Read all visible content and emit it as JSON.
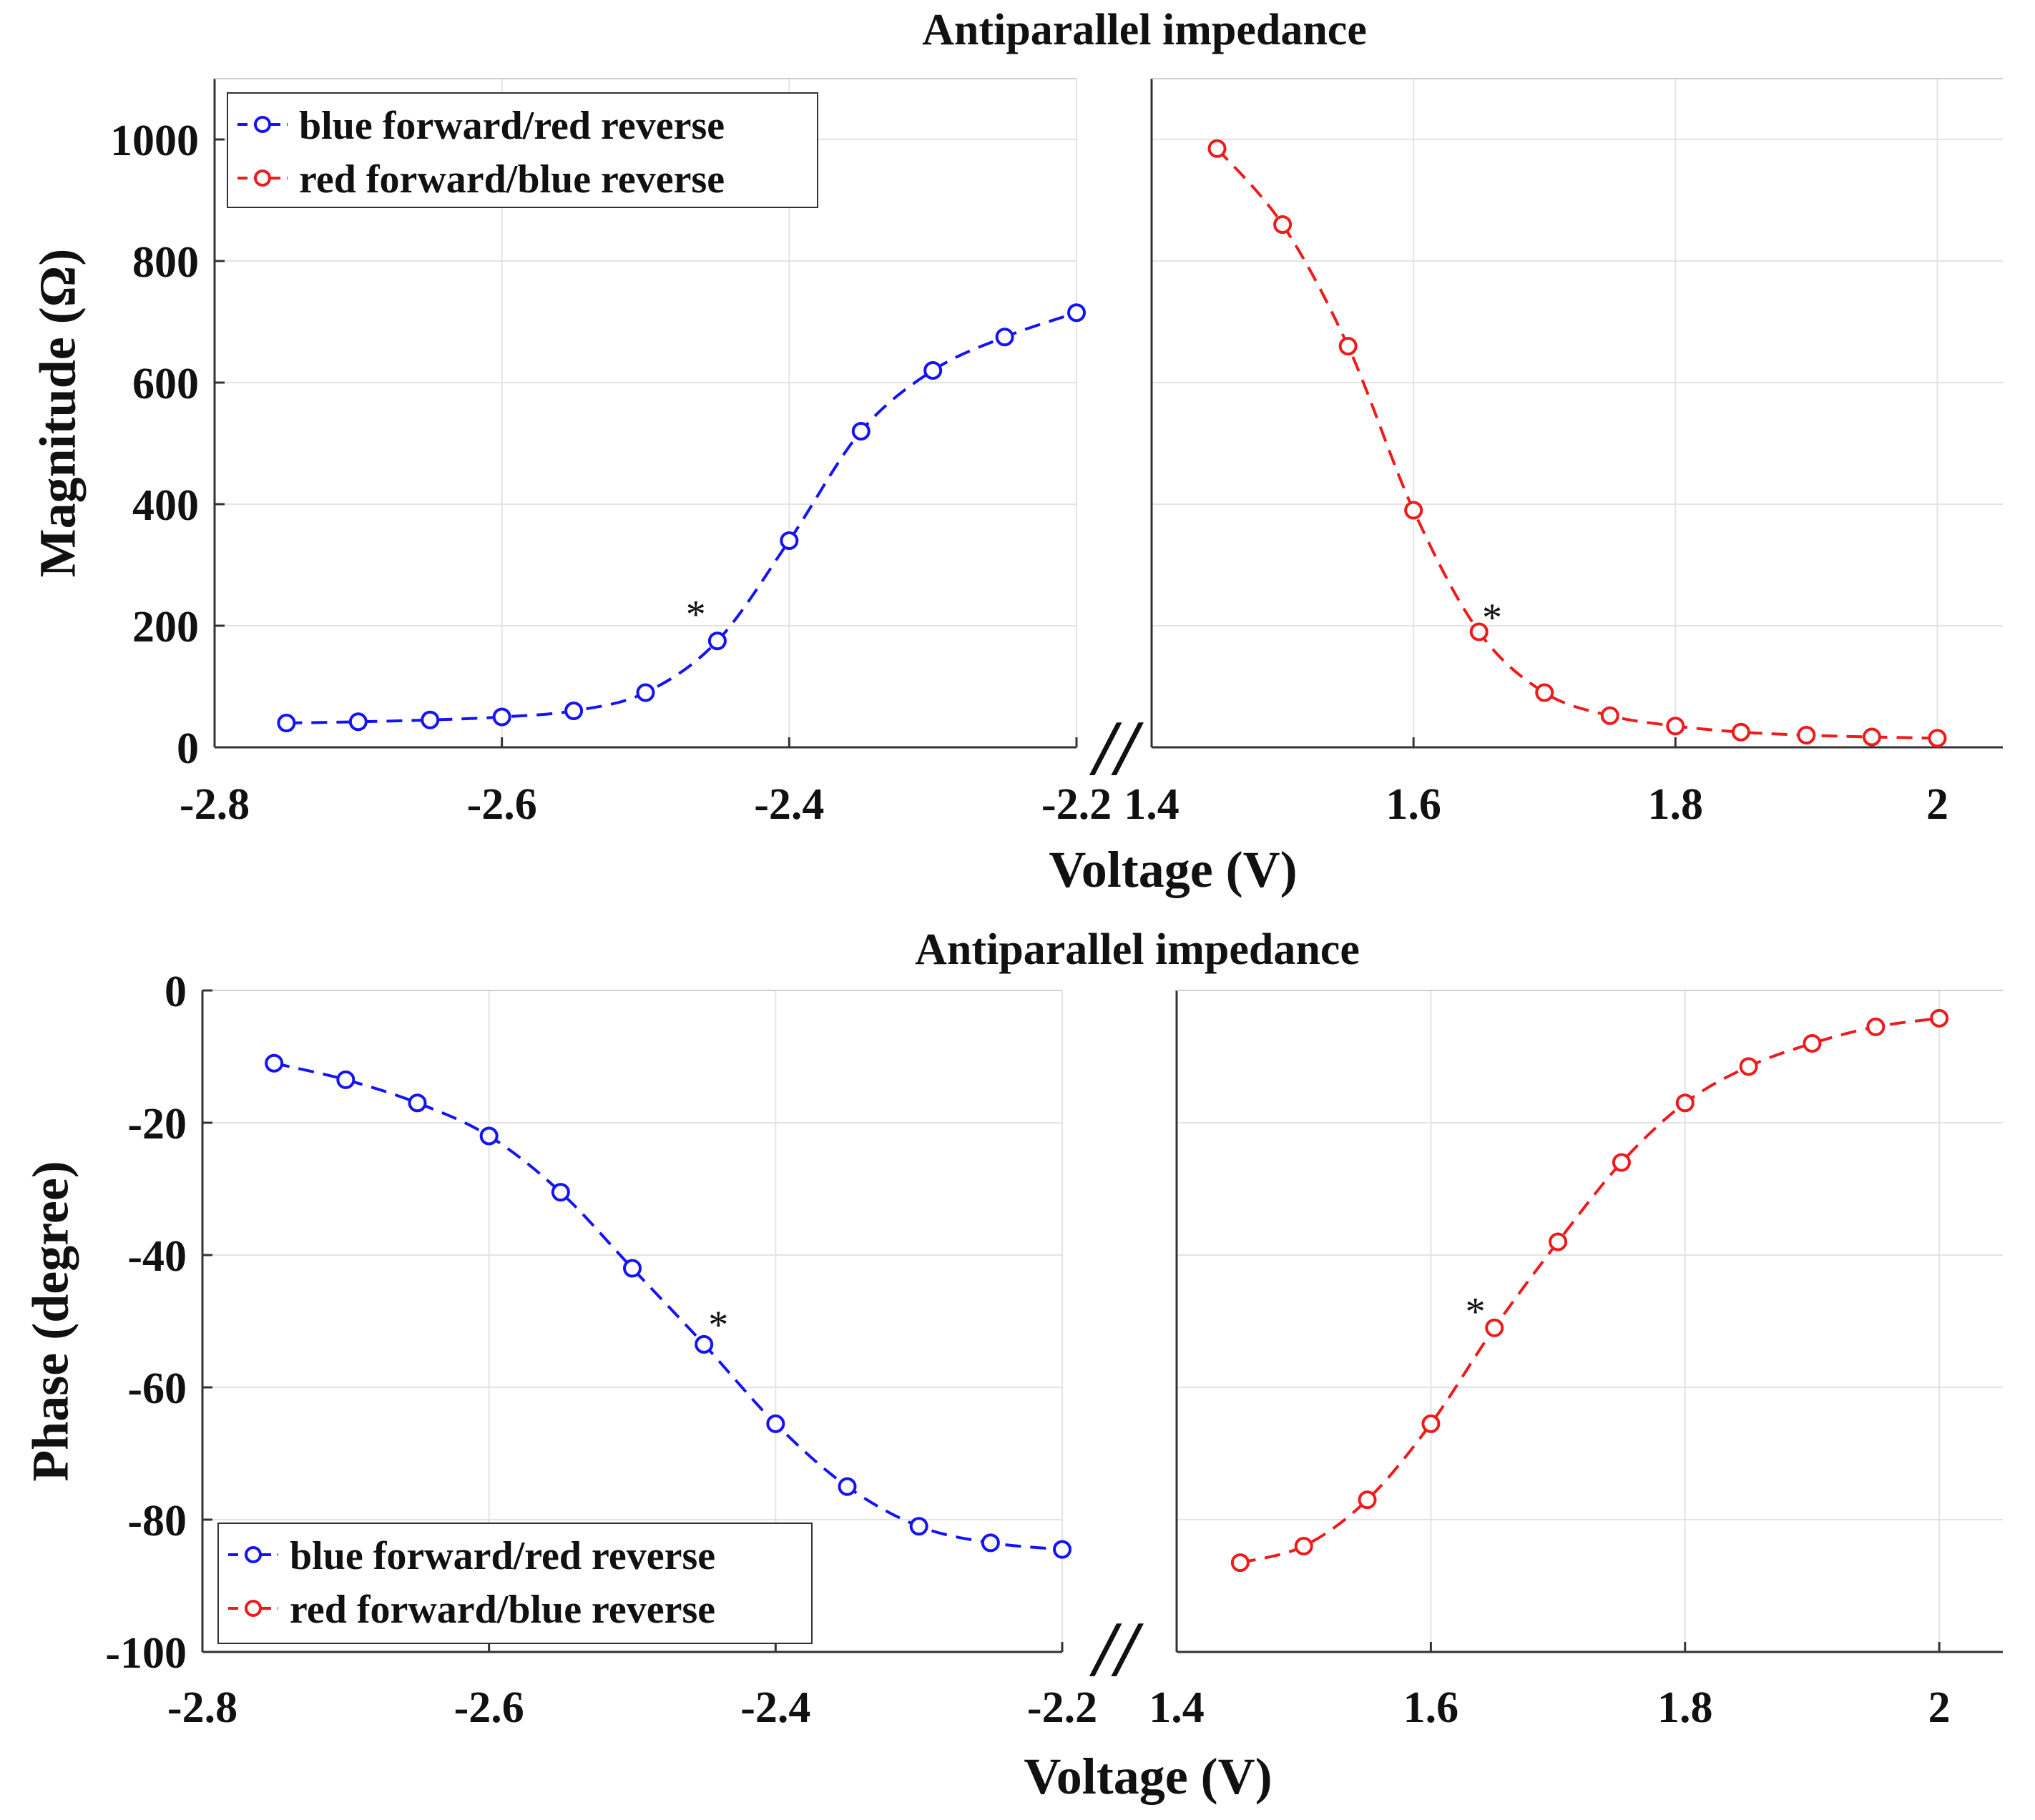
{
  "figure": {
    "colors": {
      "blue": "#1414f5",
      "red": "#ee1b1b",
      "grid": "#e3e3e3",
      "axis": "#333333"
    },
    "break_symbol": "//",
    "panels": [
      {
        "id": "magnitude",
        "title": "Antiparallel impedance",
        "xlabel": "Voltage (V)",
        "ylabel": "Magnitude (Ω)"
      },
      {
        "id": "phase",
        "title": "Antiparallel impedance",
        "xlabel": "Voltage (V)",
        "ylabel": "Phase (degree)"
      }
    ]
  },
  "chart_data": [
    {
      "type": "line",
      "title": "Antiparallel impedance",
      "xlabel": "Voltage (V)",
      "ylabel": "Magnitude (Ω)",
      "ylim": [
        0,
        1100
      ],
      "yticks": [
        0,
        200,
        400,
        600,
        800,
        1000
      ],
      "grid": true,
      "legend": {
        "placement": "top-left",
        "entries": [
          "blue forward/red reverse",
          "red forward/blue reverse"
        ]
      },
      "broken_x_axis": [
        {
          "xlim": [
            -2.8,
            -2.2
          ],
          "xticks": [
            -2.8,
            -2.6,
            -2.4,
            -2.2
          ],
          "tick_labels": [
            "-2.8",
            "-2.6",
            "-2.4",
            "-2.2"
          ]
        },
        {
          "xlim": [
            1.4,
            2.05
          ],
          "xticks": [
            1.4,
            1.6,
            1.8,
            2.0
          ],
          "tick_labels": [
            "1.4",
            "1.6",
            "1.8",
            "2"
          ]
        }
      ],
      "series": [
        {
          "name": "blue forward/red reverse",
          "color": "#1414f5",
          "segment": 0,
          "x": [
            -2.75,
            -2.7,
            -2.65,
            -2.6,
            -2.55,
            -2.5,
            -2.45,
            -2.4,
            -2.35,
            -2.3,
            -2.25,
            -2.2
          ],
          "y": [
            40,
            42,
            45,
            50,
            60,
            90,
            175,
            340,
            520,
            620,
            675,
            715
          ]
        },
        {
          "name": "red forward/blue reverse",
          "color": "#ee1b1b",
          "segment": 1,
          "x": [
            1.45,
            1.5,
            1.55,
            1.6,
            1.65,
            1.7,
            1.75,
            1.8,
            1.85,
            1.9,
            1.95,
            2.0
          ],
          "y": [
            985,
            860,
            660,
            390,
            190,
            90,
            52,
            35,
            25,
            20,
            17,
            15
          ]
        }
      ],
      "annotations": [
        {
          "text": "*",
          "x": -2.465,
          "y": 230,
          "segment": 0
        },
        {
          "text": "*",
          "x": 1.66,
          "y": 225,
          "segment": 1
        }
      ]
    },
    {
      "type": "line",
      "title": "Antiparallel impedance",
      "xlabel": "Voltage (V)",
      "ylabel": "Phase (degree)",
      "ylim": [
        -100,
        0
      ],
      "yticks": [
        -100,
        -80,
        -60,
        -40,
        -20,
        0
      ],
      "grid": true,
      "legend": {
        "placement": "bottom-left",
        "entries": [
          "blue forward/red reverse",
          "red forward/blue reverse"
        ]
      },
      "broken_x_axis": [
        {
          "xlim": [
            -2.8,
            -2.2
          ],
          "xticks": [
            -2.8,
            -2.6,
            -2.4,
            -2.2
          ],
          "tick_labels": [
            "-2.8",
            "-2.6",
            "-2.4",
            "-2.2"
          ]
        },
        {
          "xlim": [
            1.4,
            2.05
          ],
          "xticks": [
            1.4,
            1.6,
            1.8,
            2.0
          ],
          "tick_labels": [
            "1.4",
            "1.6",
            "1.8",
            "2"
          ]
        }
      ],
      "series": [
        {
          "name": "blue forward/red reverse",
          "color": "#1414f5",
          "segment": 0,
          "x": [
            -2.75,
            -2.7,
            -2.65,
            -2.6,
            -2.55,
            -2.5,
            -2.45,
            -2.4,
            -2.35,
            -2.3,
            -2.25,
            -2.2
          ],
          "y": [
            -11,
            -13.5,
            -17,
            -22,
            -30.5,
            -42,
            -53.5,
            -65.5,
            -75,
            -81,
            -83.5,
            -84.5
          ]
        },
        {
          "name": "red forward/blue reverse",
          "color": "#ee1b1b",
          "segment": 1,
          "x": [
            1.45,
            1.5,
            1.55,
            1.6,
            1.65,
            1.7,
            1.75,
            1.8,
            1.85,
            1.9,
            1.95,
            2.0
          ],
          "y": [
            -86.5,
            -84,
            -77,
            -65.5,
            -51,
            -38,
            -26,
            -17,
            -11.5,
            -8,
            -5.5,
            -4.2
          ]
        }
      ],
      "annotations": [
        {
          "text": "*",
          "x": -2.44,
          "y": -49.5,
          "segment": 0
        },
        {
          "text": "*",
          "x": 1.635,
          "y": -47.5,
          "segment": 1
        }
      ]
    }
  ]
}
